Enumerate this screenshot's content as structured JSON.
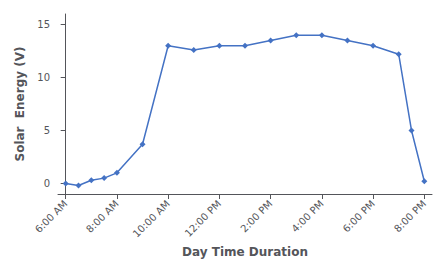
{
  "chart_data": {
    "type": "line",
    "x": [
      0,
      0.5,
      1,
      1.5,
      2,
      3,
      4,
      5,
      6,
      7,
      8,
      9,
      10,
      11,
      12,
      13,
      13.5,
      14
    ],
    "values": [
      0,
      -0.2,
      0.3,
      0.5,
      1.0,
      3.7,
      13.0,
      12.6,
      13.0,
      13.0,
      13.5,
      14.0,
      14.0,
      13.5,
      13.0,
      12.2,
      5.0,
      0.2
    ],
    "xlabel": "Day Time Duration",
    "ylabel": "Solar  Energy (V)",
    "xlim": [
      -0.3,
      14.3
    ],
    "xticks": [
      {
        "value": 0,
        "label": "6:00 AM"
      },
      {
        "value": 2,
        "label": "8:00 AM"
      },
      {
        "value": 4,
        "label": "10:00 AM"
      },
      {
        "value": 6,
        "label": "12:00 PM"
      },
      {
        "value": 8,
        "label": "2:00 PM"
      },
      {
        "value": 10,
        "label": "4:00 PM"
      },
      {
        "value": 12,
        "label": "6:00 PM"
      },
      {
        "value": 14,
        "label": "8:00 PM"
      }
    ],
    "ylim": [
      -1,
      16
    ],
    "yticks": [
      0,
      5,
      10,
      15
    ],
    "color": "#4472C4",
    "marker": "diamond",
    "grid": false
  }
}
